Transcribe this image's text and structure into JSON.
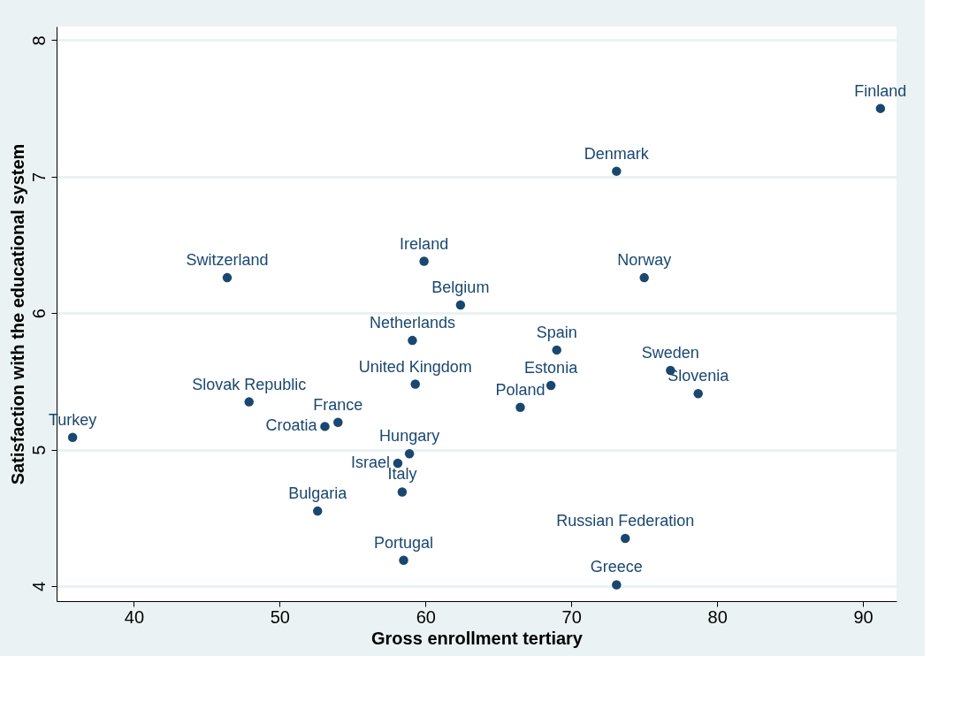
{
  "chart_data": {
    "type": "scatter",
    "xlabel": "Gross enrollment tertiary",
    "ylabel": "Satisfaction with the educational system",
    "x": [
      91.2,
      73.1,
      59.9,
      46.4,
      75.0,
      62.4,
      59.1,
      69.0,
      76.8,
      59.3,
      68.6,
      78.7,
      47.9,
      66.5,
      54.0,
      53.1,
      35.8,
      58.9,
      58.1,
      58.4,
      52.6,
      73.7,
      58.5,
      73.1
    ],
    "series": [
      {
        "color": "#1a476f",
        "values": [
          7.5,
          7.04,
          6.38,
          6.26,
          6.26,
          6.06,
          5.8,
          5.73,
          5.58,
          5.48,
          5.47,
          5.41,
          5.35,
          5.31,
          5.2,
          5.17,
          5.09,
          4.97,
          4.9,
          4.69,
          4.55,
          4.35,
          4.19,
          4.01
        ]
      }
    ],
    "annotations": [
      {
        "text": "Finland",
        "x": 91.2,
        "y": 7.5
      },
      {
        "text": "Denmark",
        "x": 73.1,
        "y": 7.04
      },
      {
        "text": "Ireland",
        "x": 59.9,
        "y": 6.38
      },
      {
        "text": "Switzerland",
        "x": 46.4,
        "y": 6.26
      },
      {
        "text": "Norway",
        "x": 75.0,
        "y": 6.26
      },
      {
        "text": "Belgium",
        "x": 62.4,
        "y": 6.06
      },
      {
        "text": "Netherlands",
        "x": 59.1,
        "y": 5.8
      },
      {
        "text": "Spain",
        "x": 69.0,
        "y": 5.73
      },
      {
        "text": "Sweden",
        "x": 76.8,
        "y": 5.58
      },
      {
        "text": "United Kingdom",
        "x": 59.3,
        "y": 5.48
      },
      {
        "text": "Estonia",
        "x": 68.6,
        "y": 5.47
      },
      {
        "text": "Slovenia",
        "x": 78.7,
        "y": 5.41
      },
      {
        "text": "Slovak Republic",
        "x": 47.9,
        "y": 5.35
      },
      {
        "text": "Poland",
        "x": 66.5,
        "y": 5.31
      },
      {
        "text": "France",
        "x": 54.0,
        "y": 5.2
      },
      {
        "text": "Croatia",
        "x": 53.1,
        "y": 5.17
      },
      {
        "text": "Turkey",
        "x": 35.8,
        "y": 5.09
      },
      {
        "text": "Hungary",
        "x": 58.9,
        "y": 4.97
      },
      {
        "text": "Israel",
        "x": 58.1,
        "y": 4.9
      },
      {
        "text": "Italy",
        "x": 58.4,
        "y": 4.69
      },
      {
        "text": "Bulgaria",
        "x": 52.6,
        "y": 4.55
      },
      {
        "text": "Russian Federation",
        "x": 73.7,
        "y": 4.35
      },
      {
        "text": "Portugal",
        "x": 58.5,
        "y": 4.19
      },
      {
        "text": "Greece",
        "x": 73.1,
        "y": 4.01
      }
    ],
    "xlim": [
      34.7,
      92.3
    ],
    "xticks": [
      40,
      50,
      60,
      70,
      80,
      90
    ],
    "ylim": [
      3.89,
      8.1
    ],
    "yticks": [
      4,
      5,
      6,
      7,
      8
    ],
    "grid": "y",
    "marker": "circle",
    "legend": false
  }
}
